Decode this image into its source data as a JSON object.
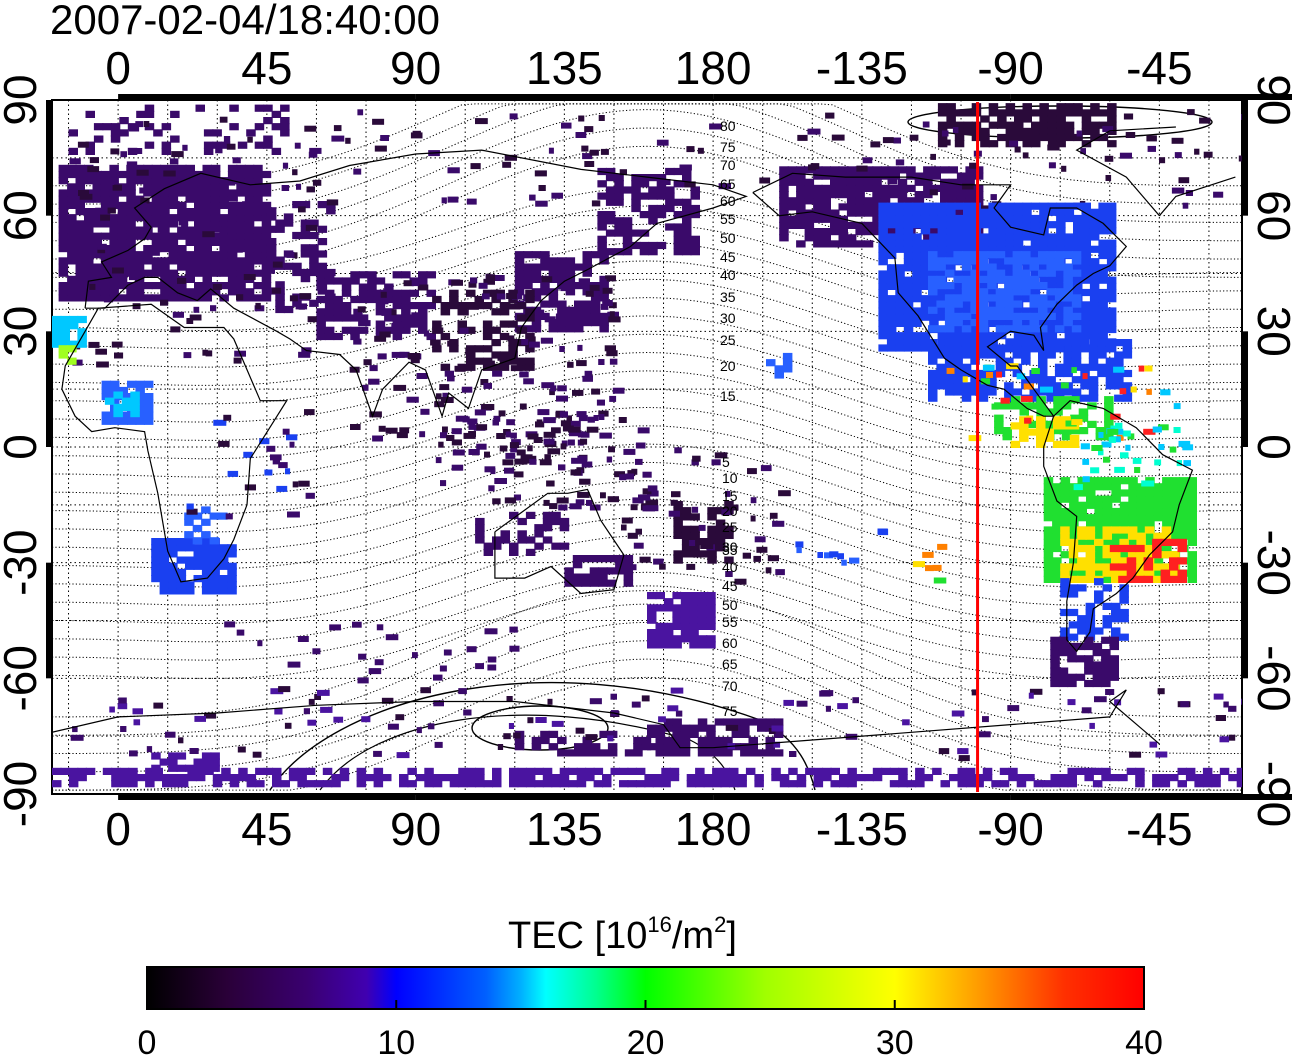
{
  "timestamp": "2007-02-04/18:40:00",
  "axes": {
    "x_ticks": [
      "0",
      "45",
      "90",
      "135",
      "180",
      "-135",
      "-90",
      "-45"
    ],
    "y_ticks": [
      "90",
      "60",
      "30",
      "0",
      "-30",
      "-60",
      "-90"
    ]
  },
  "contours": {
    "north_labels": [
      "80",
      "75",
      "70",
      "65",
      "60",
      "55",
      "50",
      "45",
      "40",
      "35",
      "30",
      "25",
      "20",
      "15"
    ],
    "south_labels": [
      "5",
      "10",
      "15",
      "20",
      "25",
      "30",
      "35",
      "40",
      "45",
      "50",
      "55",
      "60",
      "65",
      "70",
      "75"
    ]
  },
  "terminator": {
    "longitude": -100,
    "color": "#ff0000"
  },
  "colorbar": {
    "title": "TEC  [10",
    "exponent": "16",
    "title_mid": "/m",
    "title_sup2": "2",
    "title_end": "]",
    "tick_labels": [
      "0",
      "10",
      "20",
      "30",
      "40"
    ],
    "range": [
      0,
      40
    ],
    "colors": [
      "#000000",
      "#3a0050",
      "#4a00a8",
      "#0000ff",
      "#0080ff",
      "#00ffff",
      "#00ff80",
      "#00ff00",
      "#80ff00",
      "#ffff00",
      "#ff8000",
      "#ff0000"
    ]
  },
  "chart_data": {
    "type": "heatmap",
    "title": "2007-02-04/18:40:00",
    "xlabel": "",
    "ylabel": "",
    "xlim": [
      -20,
      340
    ],
    "ylim": [
      -90,
      90
    ],
    "colorbar_label": "TEC [10^16/m^2]",
    "colorbar_range": [
      0,
      40
    ]
  }
}
